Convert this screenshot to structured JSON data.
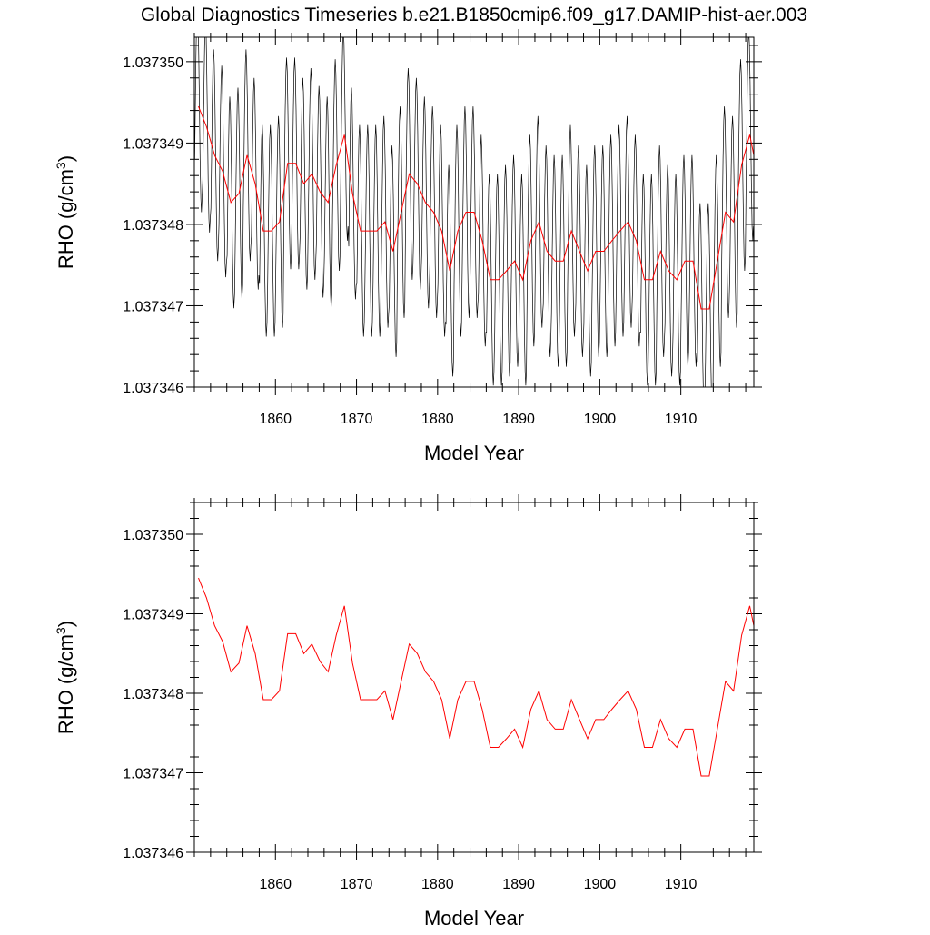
{
  "title": "Global Diagnostics Timeseries b.e21.B1850cmip6.f09_g17.DAMIP-hist-aer.003",
  "colors": {
    "monthly": "#000000",
    "annual": "#ff0000"
  },
  "chart_data": [
    {
      "type": "line",
      "xlabel": "Model Year",
      "ylabel_main": "RHO (g/cm",
      "ylabel_sup": "3",
      "ylabel_end": ")",
      "xlim": [
        1850,
        1919
      ],
      "ylim": [
        1.037346,
        1.0373503
      ],
      "x_ticks": [
        1860,
        1870,
        1880,
        1890,
        1900,
        1910
      ],
      "y_ticks": [
        1.037346,
        1.037347,
        1.037348,
        1.037349,
        1.03735
      ],
      "y_tick_labels": [
        "1.037346",
        "1.037347",
        "1.037348",
        "1.037349",
        "1.037350"
      ],
      "grid": false,
      "series": [
        {
          "style": "monthly",
          "x_start": 1850.04,
          "x_step": 0.0833333,
          "annual_means": [
            1.03734945,
            1.0373492,
            1.03734885,
            1.03734865,
            1.03734827,
            1.03734838,
            1.03734885,
            1.0373485,
            1.03734792,
            1.03734792,
            1.03734803,
            1.03734875,
            1.03734875,
            1.0373485,
            1.03734862,
            1.0373484,
            1.03734827,
            1.03734873,
            1.0373491,
            1.03734838,
            1.03734792,
            1.03734792,
            1.03734792,
            1.03734803,
            1.03734767,
            1.03734815,
            1.03734862,
            1.0373485,
            1.03734827,
            1.03734815,
            1.03734792,
            1.03734743,
            1.03734792,
            1.03734815,
            1.03734815,
            1.0373478,
            1.03734732,
            1.03734732,
            1.03734743,
            1.03734755,
            1.03734732,
            1.0373478,
            1.03734803,
            1.03734767,
            1.03734755,
            1.03734755,
            1.03734792,
            1.03734767,
            1.03734743,
            1.03734767,
            1.03734767,
            1.0373478,
            1.03734792,
            1.03734803,
            1.0373478,
            1.03734732,
            1.03734732,
            1.03734767,
            1.03734743,
            1.03734732,
            1.03734755,
            1.03734755,
            1.03734696,
            1.03734696,
            1.03734755,
            1.03734815,
            1.03734803,
            1.03734873,
            1.0373491,
            1.0373486
          ],
          "seasonal_amplitude": 1.3e-06
        },
        {
          "style": "annual",
          "x": [
            1850.5,
            1851.5,
            1852.5,
            1853.5,
            1854.5,
            1855.5,
            1856.5,
            1857.5,
            1858.5,
            1859.5,
            1860.5,
            1861.5,
            1862.5,
            1863.5,
            1864.5,
            1865.5,
            1866.5,
            1867.5,
            1868.5,
            1869.5,
            1870.5,
            1871.5,
            1872.5,
            1873.5,
            1874.5,
            1875.5,
            1876.5,
            1877.5,
            1878.5,
            1879.5,
            1880.5,
            1881.5,
            1882.5,
            1883.5,
            1884.5,
            1885.5,
            1886.5,
            1887.5,
            1888.5,
            1889.5,
            1890.5,
            1891.5,
            1892.5,
            1893.5,
            1894.5,
            1895.5,
            1896.5,
            1897.5,
            1898.5,
            1899.5,
            1900.5,
            1901.5,
            1902.5,
            1903.5,
            1904.5,
            1905.5,
            1906.5,
            1907.5,
            1908.5,
            1909.5,
            1910.5,
            1911.5,
            1912.5,
            1913.5,
            1914.5,
            1915.5,
            1916.5,
            1917.5,
            1918.5,
            1919.5
          ],
          "values": [
            1.03734945,
            1.0373492,
            1.03734885,
            1.03734865,
            1.03734827,
            1.03734838,
            1.03734885,
            1.0373485,
            1.03734792,
            1.03734792,
            1.03734803,
            1.03734875,
            1.03734875,
            1.0373485,
            1.03734862,
            1.0373484,
            1.03734827,
            1.03734873,
            1.0373491,
            1.03734838,
            1.03734792,
            1.03734792,
            1.03734792,
            1.03734803,
            1.03734767,
            1.03734815,
            1.03734862,
            1.0373485,
            1.03734827,
            1.03734815,
            1.03734792,
            1.03734743,
            1.03734792,
            1.03734815,
            1.03734815,
            1.0373478,
            1.03734732,
            1.03734732,
            1.03734743,
            1.03734755,
            1.03734732,
            1.0373478,
            1.03734803,
            1.03734767,
            1.03734755,
            1.03734755,
            1.03734792,
            1.03734767,
            1.03734743,
            1.03734767,
            1.03734767,
            1.0373478,
            1.03734792,
            1.03734803,
            1.0373478,
            1.03734732,
            1.03734732,
            1.03734767,
            1.03734743,
            1.03734732,
            1.03734755,
            1.03734755,
            1.03734696,
            1.03734696,
            1.03734755,
            1.03734815,
            1.03734803,
            1.03734873,
            1.0373491,
            1.0373486
          ]
        }
      ]
    },
    {
      "type": "line",
      "xlabel": "Model Year",
      "ylabel_main": "RHO (g/cm",
      "ylabel_sup": "3",
      "ylabel_end": ")",
      "xlim": [
        1850,
        1919
      ],
      "ylim": [
        1.037346,
        1.0373504
      ],
      "x_ticks": [
        1860,
        1870,
        1880,
        1890,
        1900,
        1910
      ],
      "y_ticks": [
        1.037346,
        1.037347,
        1.037348,
        1.037349,
        1.03735
      ],
      "y_tick_labels": [
        "1.037346",
        "1.037347",
        "1.037348",
        "1.037349",
        "1.037350"
      ],
      "grid": false,
      "series": [
        {
          "style": "annual",
          "x": [
            1850.5,
            1851.5,
            1852.5,
            1853.5,
            1854.5,
            1855.5,
            1856.5,
            1857.5,
            1858.5,
            1859.5,
            1860.5,
            1861.5,
            1862.5,
            1863.5,
            1864.5,
            1865.5,
            1866.5,
            1867.5,
            1868.5,
            1869.5,
            1870.5,
            1871.5,
            1872.5,
            1873.5,
            1874.5,
            1875.5,
            1876.5,
            1877.5,
            1878.5,
            1879.5,
            1880.5,
            1881.5,
            1882.5,
            1883.5,
            1884.5,
            1885.5,
            1886.5,
            1887.5,
            1888.5,
            1889.5,
            1890.5,
            1891.5,
            1892.5,
            1893.5,
            1894.5,
            1895.5,
            1896.5,
            1897.5,
            1898.5,
            1899.5,
            1900.5,
            1901.5,
            1902.5,
            1903.5,
            1904.5,
            1905.5,
            1906.5,
            1907.5,
            1908.5,
            1909.5,
            1910.5,
            1911.5,
            1912.5,
            1913.5,
            1914.5,
            1915.5,
            1916.5,
            1917.5,
            1918.5,
            1919.5
          ],
          "values": [
            1.03734945,
            1.0373492,
            1.03734885,
            1.03734865,
            1.03734827,
            1.03734838,
            1.03734885,
            1.0373485,
            1.03734792,
            1.03734792,
            1.03734803,
            1.03734875,
            1.03734875,
            1.0373485,
            1.03734862,
            1.0373484,
            1.03734827,
            1.03734873,
            1.0373491,
            1.03734838,
            1.03734792,
            1.03734792,
            1.03734792,
            1.03734803,
            1.03734767,
            1.03734815,
            1.03734862,
            1.0373485,
            1.03734827,
            1.03734815,
            1.03734792,
            1.03734743,
            1.03734792,
            1.03734815,
            1.03734815,
            1.0373478,
            1.03734732,
            1.03734732,
            1.03734743,
            1.03734755,
            1.03734732,
            1.0373478,
            1.03734803,
            1.03734767,
            1.03734755,
            1.03734755,
            1.03734792,
            1.03734767,
            1.03734743,
            1.03734767,
            1.03734767,
            1.0373478,
            1.03734792,
            1.03734803,
            1.0373478,
            1.03734732,
            1.03734732,
            1.03734767,
            1.03734743,
            1.03734732,
            1.03734755,
            1.03734755,
            1.03734696,
            1.03734696,
            1.03734755,
            1.03734815,
            1.03734803,
            1.03734873,
            1.0373491,
            1.0373486
          ]
        }
      ]
    }
  ]
}
